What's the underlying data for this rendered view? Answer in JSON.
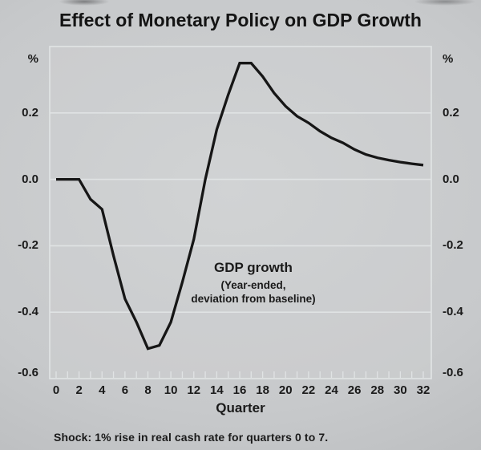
{
  "title": "Effect of Monetary Policy on GDP Growth",
  "footnote": "Shock: 1% rise in real cash rate for quarters 0 to 7.",
  "axes": {
    "unit_left": "%",
    "unit_right": "%",
    "x_label": "Quarter",
    "y_ticks": [
      {
        "label": "0.2",
        "value": 0.2
      },
      {
        "label": "0.0",
        "value": 0.0
      },
      {
        "label": "-0.2",
        "value": -0.2
      },
      {
        "label": "-0.4",
        "value": -0.4
      },
      {
        "label": "-0.6",
        "value": -0.6
      }
    ],
    "x_tick_labels": [
      "0",
      "2",
      "4",
      "6",
      "8",
      "10",
      "12",
      "14",
      "16",
      "18",
      "20",
      "22",
      "24",
      "26",
      "28",
      "30",
      "32"
    ]
  },
  "annotation": {
    "line1": "GDP growth",
    "line2": "(Year-ended,",
    "line3": "deviation from baseline)"
  },
  "chart_data": {
    "type": "line",
    "title": "Effect of Monetary Policy on GDP Growth",
    "xlabel": "Quarter",
    "ylabel": "%",
    "series_label": "GDP growth (Year-ended, deviation from baseline)",
    "x": [
      0,
      1,
      2,
      3,
      4,
      5,
      6,
      7,
      8,
      9,
      10,
      11,
      12,
      13,
      14,
      15,
      16,
      17,
      18,
      19,
      20,
      21,
      22,
      23,
      24,
      25,
      26,
      27,
      28,
      29,
      30,
      31,
      32
    ],
    "values": [
      0.0,
      0.0,
      0.0,
      -0.06,
      -0.09,
      -0.23,
      -0.36,
      -0.43,
      -0.51,
      -0.5,
      -0.43,
      -0.31,
      -0.18,
      0.0,
      0.15,
      0.255,
      0.35,
      0.35,
      0.31,
      0.26,
      0.22,
      0.19,
      0.17,
      0.145,
      0.125,
      0.11,
      0.09,
      0.075,
      0.065,
      0.058,
      0.052,
      0.047,
      0.043
    ],
    "xlim": [
      0,
      32
    ],
    "ylim": [
      -0.6,
      0.4
    ],
    "gridlines_y": [
      0.2,
      0.0,
      -0.2,
      -0.4
    ],
    "grid": true,
    "legend_position": "none",
    "line_color": "#161616"
  },
  "colors": {
    "background": "#c7c9cb",
    "grid": "#e0e3e4",
    "text": "#1a1a1a",
    "line": "#161616"
  }
}
